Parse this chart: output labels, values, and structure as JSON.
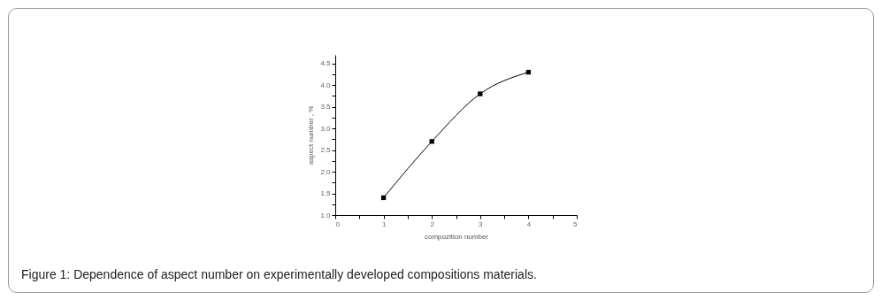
{
  "chart_data": {
    "type": "line",
    "xlabel": "compozition number",
    "ylabel": "aspect number , %",
    "annotations": [
      "Figure 1: Dependence of aspect number on experimentally developed compositions materials."
    ],
    "x": [
      1,
      2,
      3,
      4
    ],
    "series": [
      {
        "color": "#000000",
        "values": [
          1.4,
          2.7,
          3.8,
          4.3
        ]
      }
    ],
    "xlim": [
      0,
      5
    ],
    "xticks": [
      0,
      {
        "value": 0.5,
        "label": null
      },
      1,
      {
        "value": 1.5,
        "label": null
      },
      2,
      {
        "value": 2.5,
        "label": null
      },
      3,
      {
        "value": 3.5,
        "label": null
      },
      4,
      {
        "value": 4.5,
        "label": null
      },
      5
    ],
    "ylim": [
      1,
      4.7
    ],
    "yticks": [
      {
        "value": 1,
        "label": "1.0"
      },
      {
        "value": 1.25,
        "label": null
      },
      1.5,
      {
        "value": 1.75,
        "label": null
      },
      {
        "value": 2,
        "label": "2.0"
      },
      {
        "value": 2.25,
        "label": null
      },
      2.5,
      {
        "value": 2.75,
        "label": null
      },
      {
        "value": 3,
        "label": "3.0"
      },
      {
        "value": 3.25,
        "label": null
      },
      3.5,
      {
        "value": 3.75,
        "label": null
      },
      {
        "value": 4,
        "label": "4.0"
      },
      {
        "value": 4.25,
        "label": null
      },
      4.5
    ],
    "grid": false,
    "marker": "square",
    "line_style": "solid"
  }
}
